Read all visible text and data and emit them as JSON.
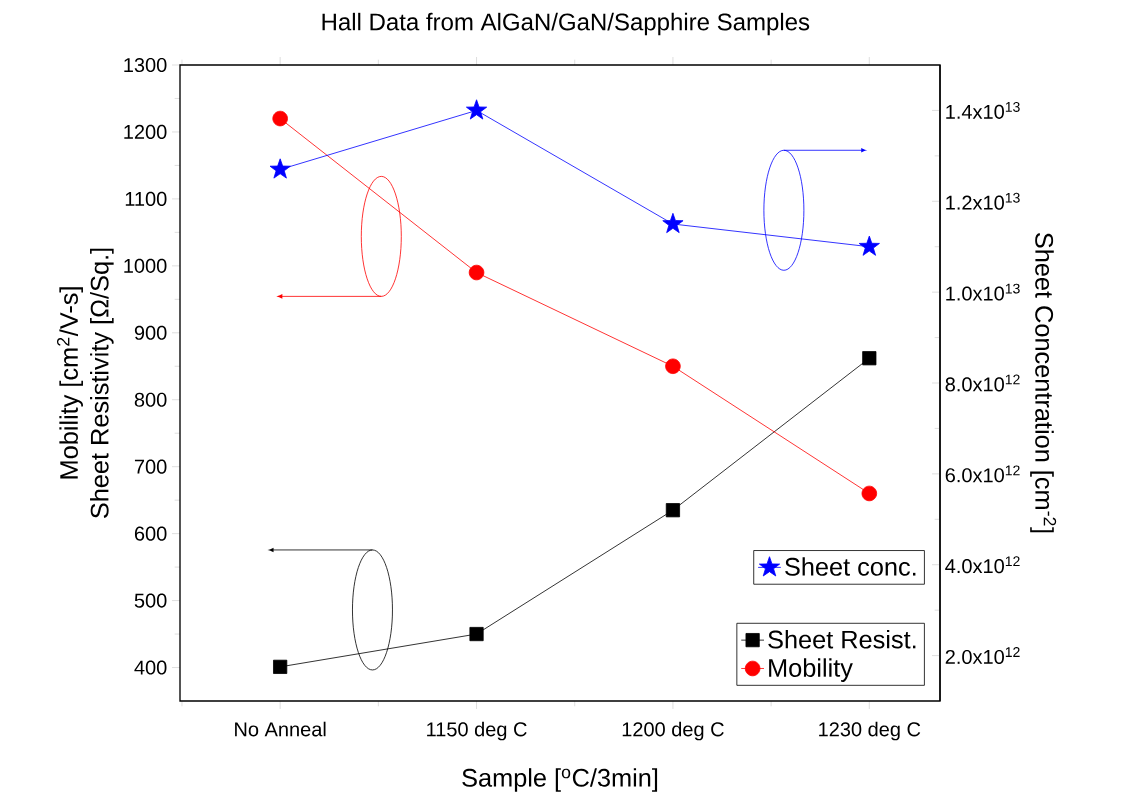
{
  "chart_data": {
    "type": "line",
    "title": "Hall Data from AlGaN/GaN/Sapphire Samples",
    "xlabel": "Sample [$^{o}$C/3min]",
    "ylabel": [
      "Mobility [cm$^{2}$/V-s]",
      "Sheet Resistivity [Ω/Sq.]"
    ],
    "y2label": "Sheet Concentration [cm$^{-2}$]",
    "categories": [
      "No Anneal",
      "1150 deg C",
      "1200 deg C",
      "1230 deg C"
    ],
    "series": [
      {
        "name": "Sheet conc.",
        "color": "#0000ff",
        "marker": "star",
        "axis": "y2",
        "values": [
          12700000000000.0,
          14000000000000.0,
          11500000000000.0,
          11000000000000.0
        ]
      },
      {
        "name": "Sheet Resist.",
        "color": "#000000",
        "marker": "square",
        "values": [
          401,
          450,
          635,
          862
        ]
      },
      {
        "name": "Mobility",
        "color": "#ff0000",
        "marker": "circle",
        "values": [
          1220,
          990,
          850,
          660
        ]
      }
    ],
    "ylim": [
      350,
      1300
    ],
    "yticks": [
      400,
      500,
      600,
      700,
      800,
      900,
      1000,
      1100,
      1200,
      1300
    ],
    "y2lim": [
      1000000000000.0,
      15000000000000.0
    ],
    "y2ticks": [
      {
        "value": 2000000000000.0,
        "label": "2.0x10$^{12}$"
      },
      {
        "value": 4000000000000.0,
        "label": "4.0x10$^{12}$"
      },
      {
        "value": 6000000000000.0,
        "label": "6.0x10$^{12}$"
      },
      {
        "value": 8000000000000.0,
        "label": "8.0x10$^{12}$"
      },
      {
        "value": 10000000000000.0,
        "label": "1.0x10$^{13}$"
      },
      {
        "value": 12000000000000.0,
        "label": "1.2x10$^{13}$"
      },
      {
        "value": 14000000000000.0,
        "label": "1.4x10$^{13}$"
      }
    ],
    "legend": "bottom right"
  }
}
